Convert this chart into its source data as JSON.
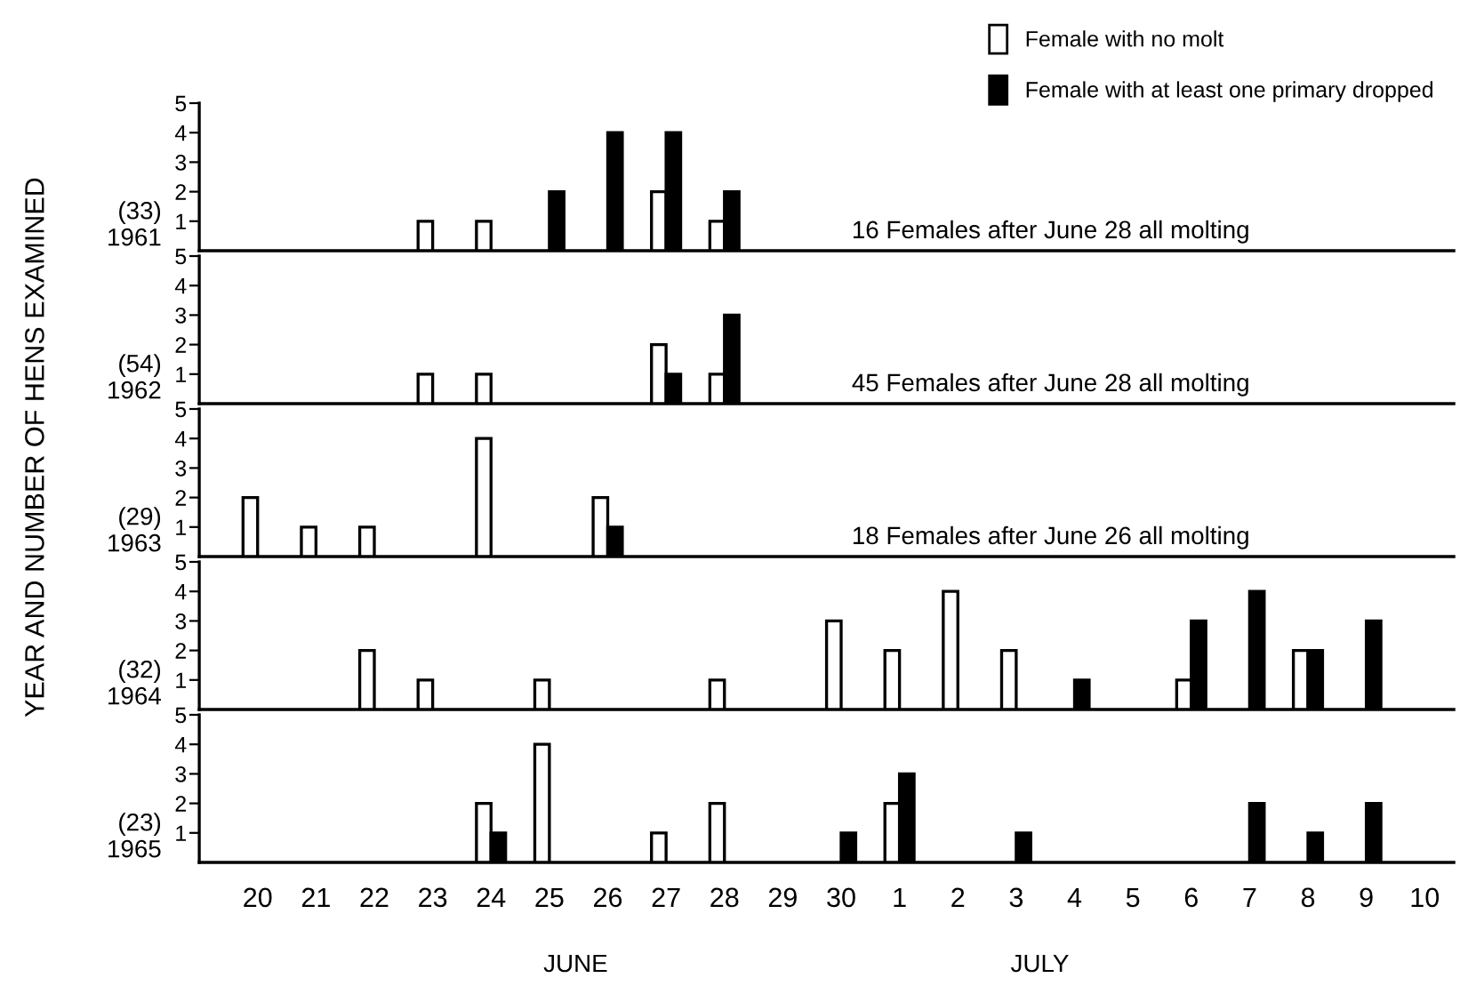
{
  "chart_data": [
    {
      "type": "bar",
      "ylabel": "(33)\n1961",
      "categories": [
        "20",
        "21",
        "22",
        "23",
        "24",
        "25",
        "26",
        "27",
        "28",
        "29",
        "30",
        "1",
        "2",
        "3",
        "4",
        "5",
        "6",
        "7",
        "8",
        "9",
        "10"
      ],
      "series": [
        {
          "name": "Female with no molt",
          "color": "#ffffff",
          "values": [
            null,
            null,
            null,
            1,
            1,
            null,
            null,
            2,
            1,
            null,
            null,
            null,
            null,
            null,
            null,
            null,
            null,
            null,
            null,
            null,
            null
          ]
        },
        {
          "name": "Female with at least one primary dropped",
          "color": "#000000",
          "values": [
            null,
            null,
            null,
            null,
            null,
            2,
            4,
            4,
            2,
            null,
            null,
            null,
            null,
            null,
            null,
            null,
            null,
            null,
            null,
            null,
            null
          ]
        }
      ],
      "ylim": [
        0,
        5
      ],
      "yticks": [
        1,
        2,
        3,
        4,
        5
      ],
      "tick_labels": "y",
      "legend": "top right",
      "annotations": [
        "16 Females after June 28 all molting",
        "YEAR AND NUMBER OF HENS EXAMINED"
      ]
    },
    {
      "type": "bar",
      "ylabel": "(54)\n1962",
      "categories": [
        "20",
        "21",
        "22",
        "23",
        "24",
        "25",
        "26",
        "27",
        "28",
        "29",
        "30",
        "1",
        "2",
        "3",
        "4",
        "5",
        "6",
        "7",
        "8",
        "9",
        "10"
      ],
      "series": [
        {
          "color": "#ffffff",
          "values": [
            null,
            null,
            null,
            1,
            1,
            null,
            null,
            2,
            1,
            null,
            null,
            null,
            null,
            null,
            null,
            null,
            null,
            null,
            null,
            null,
            null
          ]
        },
        {
          "color": "#000000",
          "values": [
            null,
            null,
            null,
            null,
            null,
            null,
            null,
            1,
            3,
            null,
            null,
            null,
            null,
            null,
            null,
            null,
            null,
            null,
            null,
            null,
            null
          ]
        }
      ],
      "ylim": [
        0,
        5
      ],
      "yticks": [
        1,
        2,
        3,
        4,
        5
      ],
      "tick_labels": "y",
      "annotations": [
        "45 Females after June 28 all molting"
      ]
    },
    {
      "type": "bar",
      "ylabel": "(29)\n1963",
      "categories": [
        "20",
        "21",
        "22",
        "23",
        "24",
        "25",
        "26",
        "27",
        "28",
        "29",
        "30",
        "1",
        "2",
        "3",
        "4",
        "5",
        "6",
        "7",
        "8",
        "9",
        "10"
      ],
      "series": [
        {
          "color": "#ffffff",
          "values": [
            2,
            1,
            1,
            null,
            4,
            null,
            2,
            null,
            null,
            null,
            null,
            null,
            null,
            null,
            null,
            null,
            null,
            null,
            null,
            null,
            null
          ]
        },
        {
          "color": "#000000",
          "values": [
            null,
            null,
            null,
            null,
            null,
            null,
            1,
            null,
            null,
            null,
            null,
            null,
            null,
            null,
            null,
            null,
            null,
            null,
            null,
            null,
            null
          ]
        }
      ],
      "ylim": [
        0,
        5
      ],
      "yticks": [
        1,
        2,
        3,
        4,
        5
      ],
      "tick_labels": "y",
      "annotations": [
        "18 Females after June 26 all molting"
      ]
    },
    {
      "type": "bar",
      "ylabel": "(32)\n1964",
      "categories": [
        "20",
        "21",
        "22",
        "23",
        "24",
        "25",
        "26",
        "27",
        "28",
        "29",
        "30",
        "1",
        "2",
        "3",
        "4",
        "5",
        "6",
        "7",
        "8",
        "9",
        "10"
      ],
      "series": [
        {
          "color": "#ffffff",
          "values": [
            null,
            null,
            2,
            1,
            null,
            1,
            null,
            null,
            1,
            null,
            3,
            2,
            4,
            2,
            null,
            null,
            1,
            null,
            2,
            null,
            null
          ]
        },
        {
          "color": "#000000",
          "values": [
            null,
            null,
            null,
            null,
            null,
            null,
            null,
            null,
            null,
            null,
            null,
            null,
            null,
            null,
            1,
            null,
            3,
            4,
            2,
            3,
            null
          ]
        }
      ],
      "ylim": [
        0,
        5
      ],
      "yticks": [
        1,
        2,
        3,
        4,
        5
      ],
      "tick_labels": "y"
    },
    {
      "type": "bar",
      "ylabel": "(23)\n1965",
      "categories": [
        "20",
        "21",
        "22",
        "23",
        "24",
        "25",
        "26",
        "27",
        "28",
        "29",
        "30",
        "1",
        "2",
        "3",
        "4",
        "5",
        "6",
        "7",
        "8",
        "9",
        "10"
      ],
      "series": [
        {
          "color": "#ffffff",
          "values": [
            null,
            null,
            null,
            null,
            2,
            4,
            null,
            1,
            2,
            null,
            null,
            2,
            null,
            null,
            null,
            null,
            null,
            null,
            null,
            null,
            null
          ]
        },
        {
          "color": "#000000",
          "values": [
            null,
            null,
            null,
            null,
            1,
            null,
            null,
            null,
            null,
            null,
            1,
            3,
            null,
            1,
            null,
            null,
            null,
            2,
            1,
            2,
            null
          ]
        }
      ],
      "ylim": [
        0,
        5
      ],
      "yticks": [
        1,
        2,
        3,
        4,
        5
      ],
      "annotations": [
        "JUNE",
        "JULY"
      ]
    }
  ]
}
